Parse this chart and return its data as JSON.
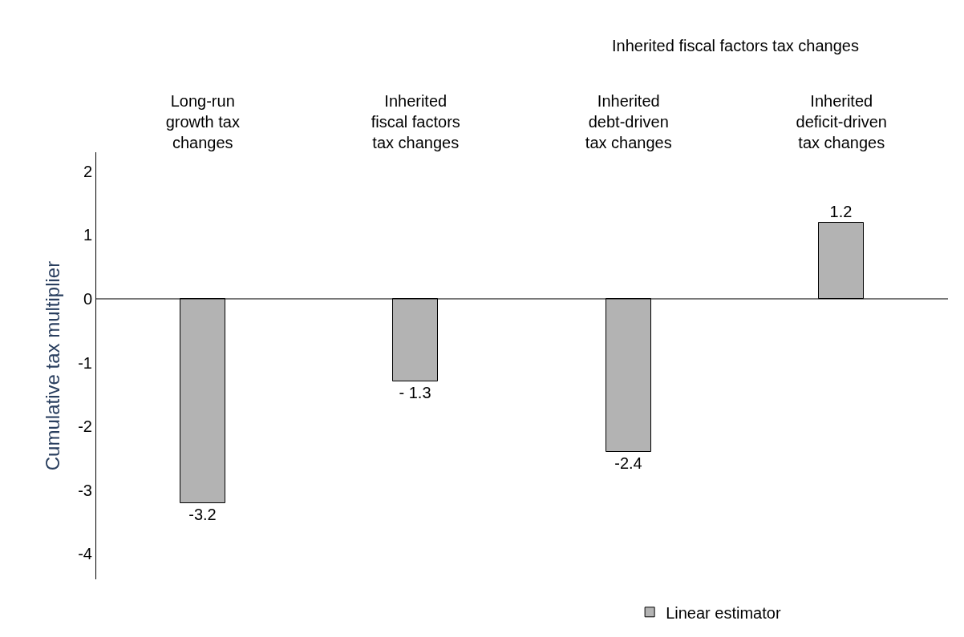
{
  "chart_data": {
    "type": "bar",
    "categories": [
      "Long-run\ngrowth tax\nchanges",
      "Inherited\nfiscal factors\ntax changes",
      "Inherited\ndebt-driven\ntax changes",
      "Inherited\ndeficit-driven\ntax changes"
    ],
    "series": [
      {
        "name": "Linear estimator",
        "color": "#b3b3b3",
        "values": [
          -3.2,
          -1.3,
          -2.4,
          1.2
        ],
        "value_labels": [
          "-3.2",
          "- 1.3",
          "-2.4",
          "1.2"
        ]
      }
    ],
    "ylabel": "Cumulative tax multiplier",
    "ylim": [
      -4.4,
      2.3
    ],
    "yticks": [
      -4,
      -3,
      -2,
      -1,
      0,
      1,
      2
    ],
    "annotations": [
      "Inherited fiscal factors tax changes"
    ],
    "ref_lines": [
      {
        "axis": "y",
        "value": 0,
        "color": "#000000"
      }
    ],
    "legend": "bottom"
  }
}
